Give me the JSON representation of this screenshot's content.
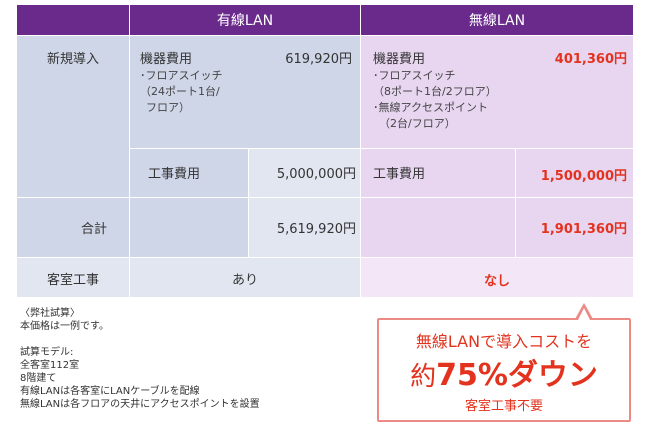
{
  "header": {
    "wired": "有線LAN",
    "wireless": "無線LAN"
  },
  "rows": {
    "intro": {
      "label": "新規導入"
    },
    "total": {
      "label": "合計"
    },
    "room": {
      "label": "客室工事"
    }
  },
  "wired": {
    "equipment_title": "機器費用",
    "equipment_detail": [
      "･フロアスイッチ",
      "（24ポート1台/",
      "フロア）"
    ],
    "equipment_cost": "619,920円",
    "construction_title": "工事費用",
    "construction_cost": "5,000,000円",
    "total_cost": "5,619,920円",
    "room_work": "あり"
  },
  "wireless": {
    "equipment_title": "機器費用",
    "equipment_detail": [
      "･フロアスイッチ",
      "（8ポート1台/2フロア）",
      "･無線アクセスポイント",
      "（2台/フロア）"
    ],
    "equipment_cost": "401,360円",
    "construction_title": "工事費用",
    "construction_cost": "1,500,000円",
    "total_cost": "1,901,360円",
    "room_work": "なし"
  },
  "notes": [
    "〈弊社試算〉",
    "本価格は一例です。",
    "",
    "試算モデル:",
    "全客室112室",
    "8階建て",
    "有線LANは各客室にLANケーブルを配線",
    "無線LANは各フロアの天井にアクセスポイントを設置"
  ],
  "callout": {
    "line1": "無線LANで導入コストを",
    "prefix": "約",
    "highlight": "75%ダウン",
    "line3": "客室工事不要"
  },
  "colors": {
    "header": "#6a2a8c",
    "accent": "#e3331e",
    "wired_bg": "#cfd6e8",
    "wireless_bg": "#e8d6f1",
    "callout_border": "#ec8a86"
  }
}
